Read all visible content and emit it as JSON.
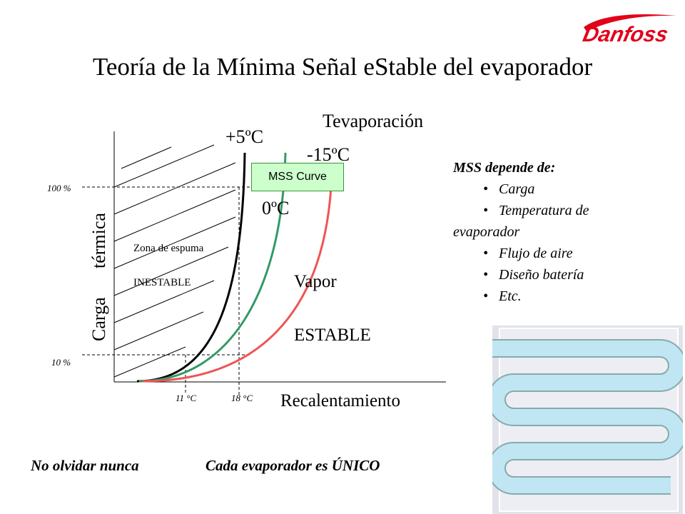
{
  "slide": {
    "title": "Teoría de la Mínima Señal eStable del evaporador",
    "logo_text": "Danfoss",
    "colors": {
      "logo_red": "#e2001a",
      "curve_black": "#000000",
      "curve_green": "#339966",
      "curve_red": "#ee5555",
      "box_fill": "#ccffcc",
      "evaporator_tube": "#bfe6f2"
    }
  },
  "diagram": {
    "axis_y_label_1": "Carga",
    "axis_y_label_2": "térmica",
    "axis_x_label": "Recalentamiento",
    "legend_title": "Tevaporación",
    "curve_label_plus5": "+5ºC",
    "curve_label_0": "0ºC",
    "curve_label_minus15": "-15ºC",
    "mss_box": "MSS Curve",
    "tick_100": "100 %",
    "tick_10": "10 %",
    "tick_11": "11 °C",
    "tick_18": "18 °C",
    "zone_unstable_1": "Zona de espuma",
    "zone_unstable_2": "INESTABLE",
    "zone_stable_1": "Vapor",
    "zone_stable_2": "ESTABLE"
  },
  "sidebar": {
    "header": "MSS depende de:",
    "items": [
      "Carga",
      "Temperatura de",
      "Flujo de aire",
      "Diseño batería",
      "Etc."
    ],
    "item_continuation": "evaporador"
  },
  "footer": {
    "left": "No olvidar nunca",
    "right": "Cada evaporador es ÚNICO"
  }
}
